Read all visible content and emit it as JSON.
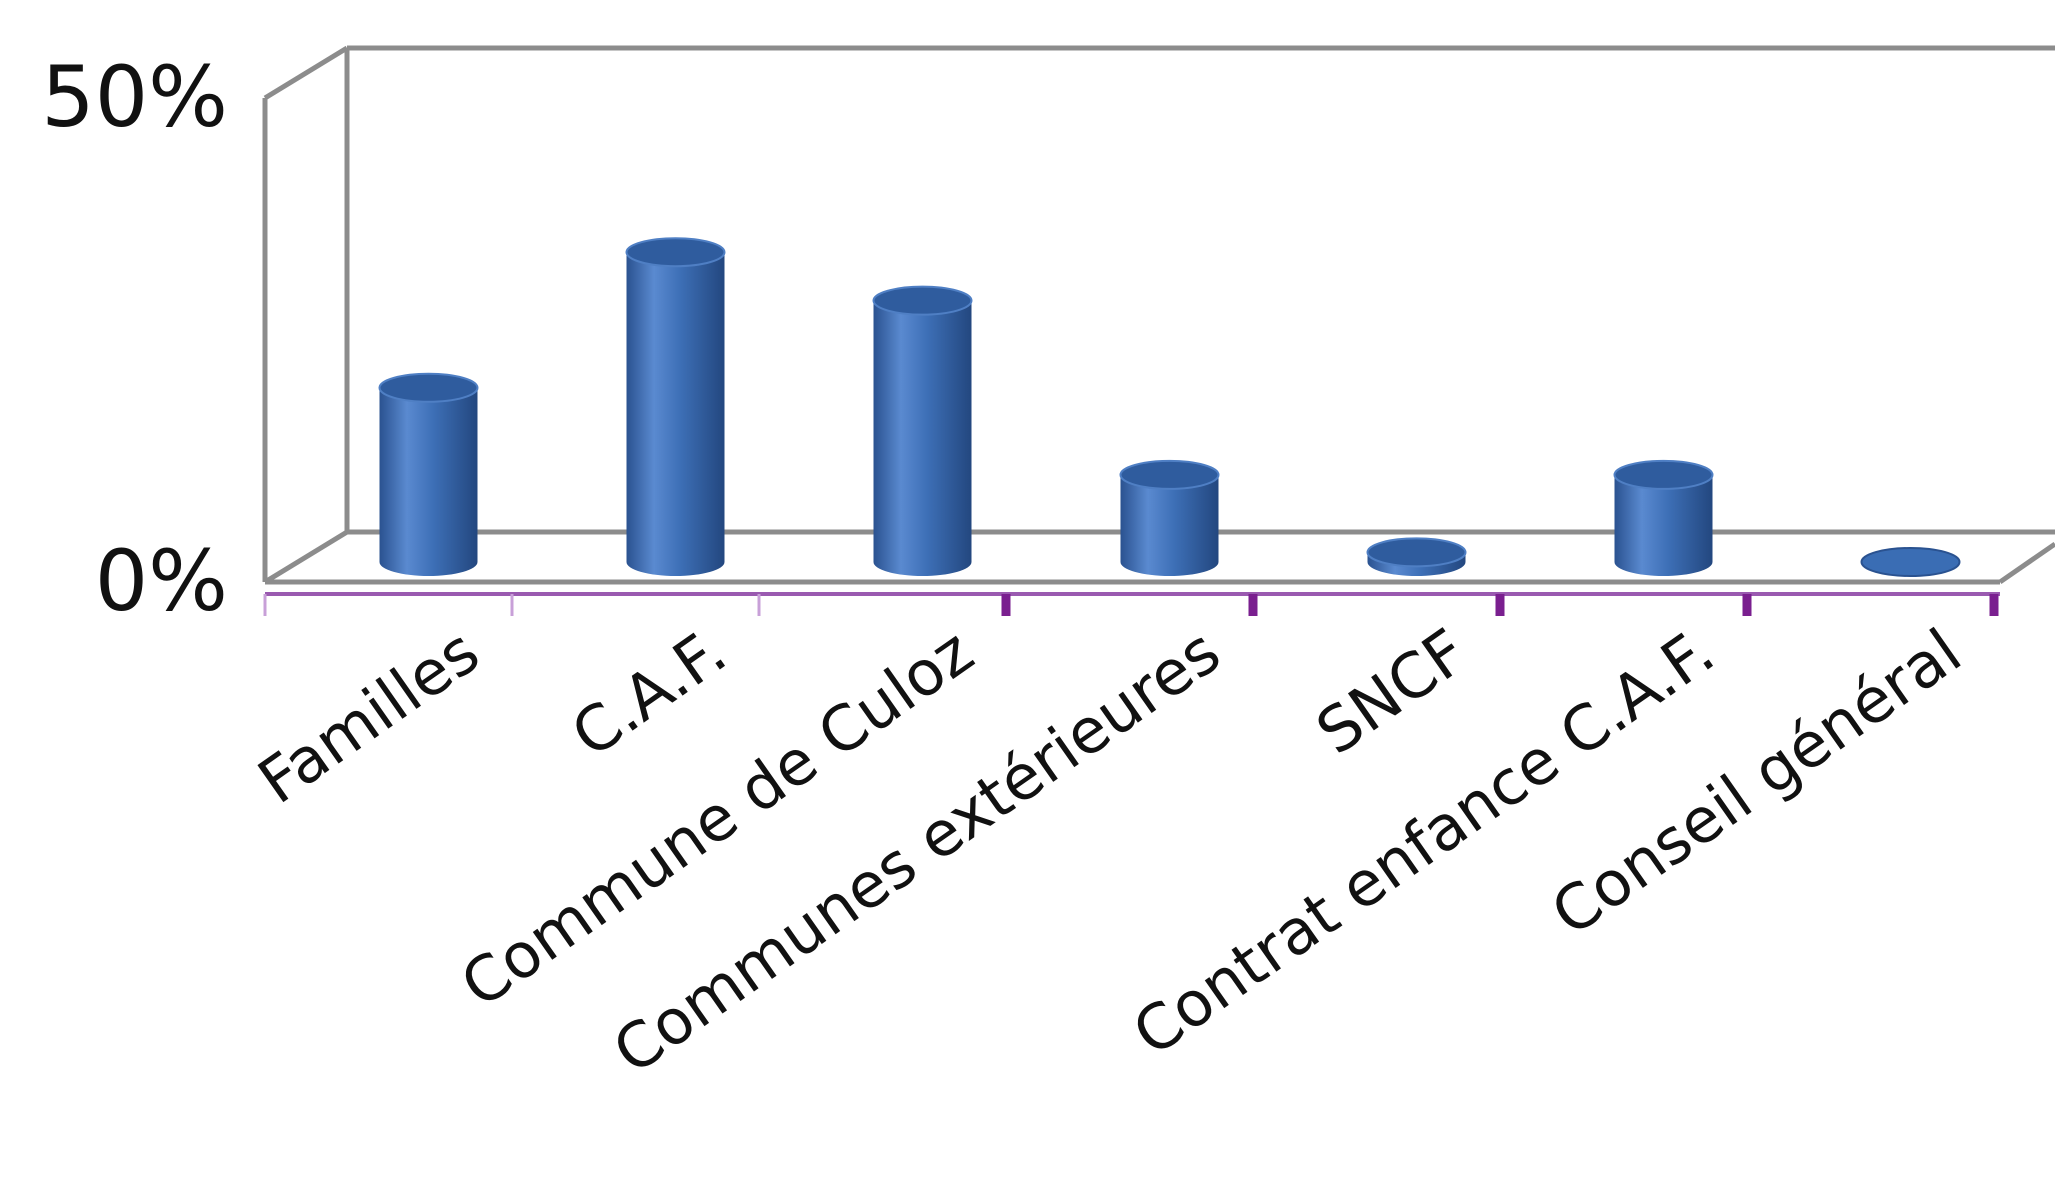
{
  "chart_data": {
    "type": "bar",
    "categories": [
      "Familles",
      "C.A.F.",
      "Commune de Culoz",
      "Communes extérieures",
      "SNCF",
      "Contrat enfance C.A.F.",
      "Conseil général"
    ],
    "values": [
      18,
      32,
      27,
      9,
      1,
      9,
      0
    ],
    "value_unit": "%",
    "y_tick_labels": [
      "0%",
      "50%"
    ],
    "ylim": [
      0,
      50
    ],
    "style": "3d-cylinder",
    "bar_color": "#3a6db4",
    "grid": false,
    "legend": false
  }
}
